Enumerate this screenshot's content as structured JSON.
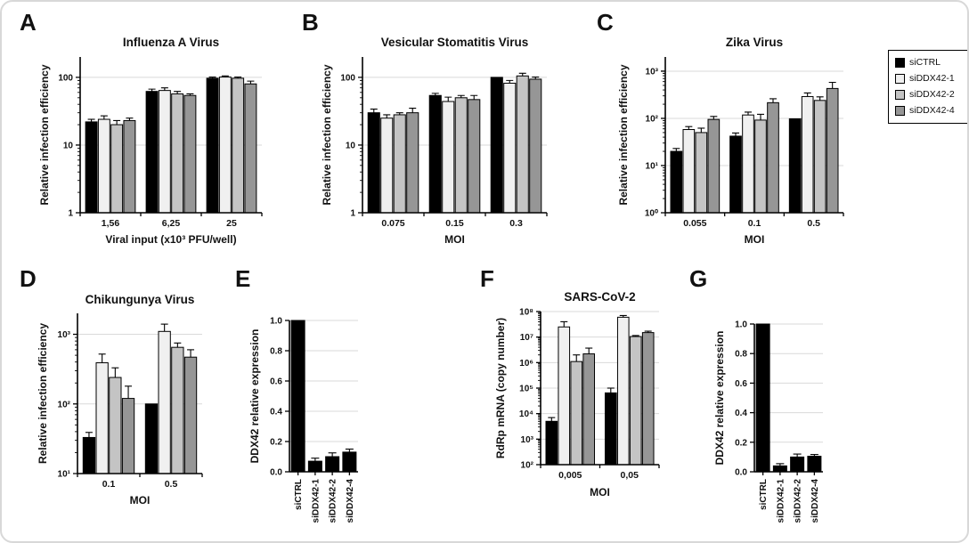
{
  "figure": {
    "background": "#ffffff",
    "border_color": "#d8d8d8",
    "grid_color": "#d9d9d9",
    "axis_color": "#000000"
  },
  "legend": {
    "position": "top-right",
    "items": [
      {
        "label": "siCTRL",
        "color": "#000000"
      },
      {
        "label": "siDDX42-1",
        "color": "#f0f0f0"
      },
      {
        "label": "siDDX42-2",
        "color": "#c4c4c4"
      },
      {
        "label": "siDDX42-4",
        "color": "#969696"
      }
    ]
  },
  "chart_data": [
    {
      "panel": "A",
      "type": "bar",
      "title": "Influenza A Virus",
      "xlabel": "Viral input (x10³ PFU/well)",
      "ylabel": "Relative infection efficiency",
      "yscale": "log",
      "ylim": [
        1,
        200
      ],
      "yticks": [
        {
          "v": 1,
          "label": "1"
        },
        {
          "v": 10,
          "label": "10"
        },
        {
          "v": 100,
          "label": "100"
        }
      ],
      "grid": true,
      "categories": [
        "1,56",
        "6,25",
        "25"
      ],
      "series": [
        {
          "name": "siCTRL",
          "color": "#000000",
          "values": [
            22,
            62,
            97
          ],
          "errors": [
            2,
            5,
            4
          ]
        },
        {
          "name": "siDDX42-1",
          "color": "#f0f0f0",
          "values": [
            24,
            64,
            101
          ],
          "errors": [
            3,
            6,
            4
          ]
        },
        {
          "name": "siDDX42-2",
          "color": "#c4c4c4",
          "values": [
            20,
            57,
            97
          ],
          "errors": [
            3,
            5,
            4
          ]
        },
        {
          "name": "siDDX42-4",
          "color": "#969696",
          "values": [
            23,
            54,
            80
          ],
          "errors": [
            2,
            3,
            8
          ]
        }
      ]
    },
    {
      "panel": "B",
      "type": "bar",
      "title": "Vesicular Stomatitis Virus",
      "xlabel": "MOI",
      "ylabel": "Relative infection efficiency",
      "yscale": "log",
      "ylim": [
        1,
        200
      ],
      "yticks": [
        {
          "v": 1,
          "label": "1"
        },
        {
          "v": 10,
          "label": "10"
        },
        {
          "v": 100,
          "label": "100"
        }
      ],
      "grid": true,
      "categories": [
        "0.075",
        "0.15",
        "0.3"
      ],
      "series": [
        {
          "name": "siCTRL",
          "color": "#000000",
          "values": [
            30,
            54,
            100
          ],
          "errors": [
            4,
            4,
            0
          ]
        },
        {
          "name": "siDDX42-1",
          "color": "#f0f0f0",
          "values": [
            25,
            44,
            82
          ],
          "errors": [
            3,
            7,
            8
          ]
        },
        {
          "name": "siDDX42-2",
          "color": "#c4c4c4",
          "values": [
            28,
            50,
            105
          ],
          "errors": [
            2,
            4,
            10
          ]
        },
        {
          "name": "siDDX42-4",
          "color": "#969696",
          "values": [
            30,
            47,
            94
          ],
          "errors": [
            5,
            7,
            7
          ]
        }
      ]
    },
    {
      "panel": "C",
      "type": "bar",
      "title": "Zika Virus",
      "xlabel": "MOI",
      "ylabel": "Relative infection efficiency",
      "yscale": "log",
      "ylim": [
        1,
        2000
      ],
      "yticks": [
        {
          "v": 1,
          "label": "10⁰"
        },
        {
          "v": 10,
          "label": "10¹"
        },
        {
          "v": 100,
          "label": "10²"
        },
        {
          "v": 1000,
          "label": "10³"
        }
      ],
      "grid": true,
      "categories": [
        "0.055",
        "0.1",
        "0.5"
      ],
      "series": [
        {
          "name": "siCTRL",
          "color": "#000000",
          "values": [
            20,
            42,
            98
          ],
          "errors": [
            3,
            7,
            0
          ]
        },
        {
          "name": "siDDX42-1",
          "color": "#f0f0f0",
          "values": [
            58,
            118,
            290
          ],
          "errors": [
            9,
            18,
            55
          ]
        },
        {
          "name": "siDDX42-2",
          "color": "#c4c4c4",
          "values": [
            50,
            92,
            240
          ],
          "errors": [
            12,
            30,
            45
          ]
        },
        {
          "name": "siDDX42-4",
          "color": "#969696",
          "values": [
            95,
            215,
            430
          ],
          "errors": [
            15,
            45,
            150
          ]
        }
      ]
    },
    {
      "panel": "D",
      "type": "bar",
      "title": "Chikungunya Virus",
      "xlabel": "MOI",
      "ylabel": "Relative infection efficiency",
      "yscale": "log",
      "ylim": [
        10,
        2000
      ],
      "yticks": [
        {
          "v": 10,
          "label": "10¹"
        },
        {
          "v": 100,
          "label": "10²"
        },
        {
          "v": 1000,
          "label": "10³"
        }
      ],
      "grid": true,
      "categories": [
        "0.1",
        "0.5"
      ],
      "series": [
        {
          "name": "siCTRL",
          "color": "#000000",
          "values": [
            33,
            100
          ],
          "errors": [
            6,
            0
          ]
        },
        {
          "name": "siDDX42-1",
          "color": "#f0f0f0",
          "values": [
            390,
            1100
          ],
          "errors": [
            130,
            300
          ]
        },
        {
          "name": "siDDX42-2",
          "color": "#c4c4c4",
          "values": [
            240,
            650
          ],
          "errors": [
            90,
            100
          ]
        },
        {
          "name": "siDDX42-4",
          "color": "#969696",
          "values": [
            120,
            470
          ],
          "errors": [
            60,
            130
          ]
        }
      ]
    },
    {
      "panel": "E",
      "type": "bar",
      "title": "",
      "xlabel": "",
      "ylabel": "DDX42 relative expression",
      "yscale": "linear",
      "ylim": [
        0,
        1.0
      ],
      "yticks": [
        {
          "v": 0.0,
          "label": "0.0"
        },
        {
          "v": 0.2,
          "label": "0.2"
        },
        {
          "v": 0.4,
          "label": "0.4"
        },
        {
          "v": 0.6,
          "label": "0.6"
        },
        {
          "v": 0.8,
          "label": "0.8"
        },
        {
          "v": 1.0,
          "label": "1.0"
        }
      ],
      "grid": true,
      "xtick_rotation": 90,
      "categories": [
        "siCTRL",
        "siDDX42-1",
        "siDDX42-2",
        "siDDX42-4"
      ],
      "series": [
        {
          "name": "DDX42",
          "color": "#000000",
          "values": [
            1.0,
            0.07,
            0.1,
            0.13
          ],
          "errors": [
            0,
            0.02,
            0.025,
            0.02
          ]
        }
      ]
    },
    {
      "panel": "F",
      "type": "bar",
      "title": "SARS-CoV-2",
      "xlabel": "MOI",
      "ylabel": "RdRp mRNA (copy number)",
      "yscale": "log",
      "ylim": [
        100,
        100000000
      ],
      "yticks": [
        {
          "v": 100,
          "label": "10²"
        },
        {
          "v": 1000,
          "label": "10³"
        },
        {
          "v": 10000,
          "label": "10⁴"
        },
        {
          "v": 100000,
          "label": "10⁵"
        },
        {
          "v": 1000000,
          "label": "10⁶"
        },
        {
          "v": 10000000,
          "label": "10⁷"
        },
        {
          "v": 100000000,
          "label": "10⁸"
        }
      ],
      "grid": true,
      "categories": [
        "0,005",
        "0,05"
      ],
      "series": [
        {
          "name": "siCTRL",
          "color": "#000000",
          "values": [
            5000,
            65000
          ],
          "errors": [
            2000,
            35000
          ]
        },
        {
          "name": "siDDX42-1",
          "color": "#f0f0f0",
          "values": [
            25000000,
            60000000
          ],
          "errors": [
            15000000,
            10000000
          ]
        },
        {
          "name": "siDDX42-2",
          "color": "#c4c4c4",
          "values": [
            1100000,
            10500000
          ],
          "errors": [
            900000,
            1000000
          ]
        },
        {
          "name": "siDDX42-4",
          "color": "#969696",
          "values": [
            2200000,
            15000000
          ],
          "errors": [
            1500000,
            2000000
          ]
        }
      ]
    },
    {
      "panel": "G",
      "type": "bar",
      "title": "",
      "xlabel": "",
      "ylabel": "DDX42 relative expression",
      "yscale": "linear",
      "ylim": [
        0,
        1.0
      ],
      "yticks": [
        {
          "v": 0.0,
          "label": "0.0"
        },
        {
          "v": 0.2,
          "label": "0.2"
        },
        {
          "v": 0.4,
          "label": "0.4"
        },
        {
          "v": 0.6,
          "label": "0.6"
        },
        {
          "v": 0.8,
          "label": "0.8"
        },
        {
          "v": 1.0,
          "label": "1.0"
        }
      ],
      "grid": true,
      "xtick_rotation": 90,
      "categories": [
        "siCTRL",
        "siDDX42-1",
        "siDDX42-2",
        "siDDX42-4"
      ],
      "series": [
        {
          "name": "DDX42",
          "color": "#000000",
          "values": [
            1.0,
            0.04,
            0.1,
            0.105
          ],
          "errors": [
            0,
            0.015,
            0.02,
            0.012
          ]
        }
      ]
    }
  ]
}
